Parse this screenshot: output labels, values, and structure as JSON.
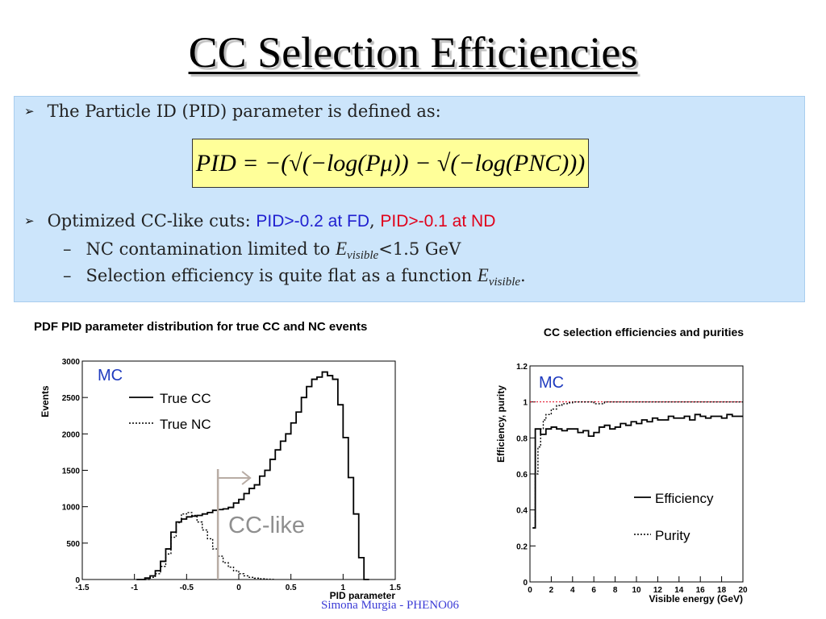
{
  "slide": {
    "title": "CC Selection Efficiencies",
    "bullet1": "The Particle ID (PID) parameter is defined as:",
    "formula": "PID = −(√(−log(Pμ)) − √(−log(PNC)))",
    "bullet2_prefix": "Optimized CC-like cuts: ",
    "bullet2_fd": "PID>-0.2 at FD",
    "bullet2_sep": ", ",
    "bullet2_nd": "PID>-0.1 at ND",
    "sub1_prefix": "NC contamination limited to ",
    "sub1_var": "E",
    "sub1_subscript": "visible",
    "sub1_suffix": "<1.5 GeV",
    "sub2_prefix": "Selection efficiency is quite flat as a function ",
    "sub2_var": "E",
    "sub2_subscript": "visible",
    "sub2_suffix": ".",
    "footer": "Simona Murgia - PHENO06",
    "colors": {
      "fd": "#1f1fd0",
      "nd": "#e0001a",
      "panel": "#cce5fb",
      "formula_box": "#ffff99"
    }
  },
  "chart_data": [
    {
      "type": "line",
      "title": "PDF PID parameter distribution for true CC and NC events",
      "xlabel": "PID parameter",
      "ylabel": "Events",
      "xlim": [
        -1.5,
        1.5
      ],
      "ylim": [
        0,
        3000
      ],
      "x_ticks": [
        "-1.5",
        "-1",
        "-0.5",
        "0",
        "0.5",
        "1",
        "1.5"
      ],
      "y_ticks": [
        "0",
        "500",
        "1000",
        "1500",
        "2000",
        "2500",
        "3000"
      ],
      "annotation_mc": "MC",
      "annotation_cut": "CC-like",
      "cut_value": -0.2,
      "legend": [
        "True CC",
        "True NC"
      ],
      "series": [
        {
          "name": "True CC",
          "style": "solid",
          "x": [
            -0.98,
            -0.9,
            -0.85,
            -0.8,
            -0.75,
            -0.7,
            -0.65,
            -0.6,
            -0.55,
            -0.5,
            -0.45,
            -0.4,
            -0.35,
            -0.3,
            -0.25,
            -0.2,
            -0.15,
            -0.1,
            -0.05,
            0,
            0.05,
            0.1,
            0.15,
            0.2,
            0.25,
            0.3,
            0.35,
            0.4,
            0.45,
            0.5,
            0.55,
            0.6,
            0.65,
            0.7,
            0.75,
            0.8,
            0.85,
            0.9,
            0.95,
            1.0,
            1.05,
            1.1,
            1.15,
            1.2,
            1.25
          ],
          "values": [
            0,
            20,
            50,
            120,
            250,
            420,
            650,
            790,
            830,
            860,
            870,
            880,
            900,
            920,
            950,
            960,
            970,
            990,
            1050,
            1100,
            1180,
            1250,
            1300,
            1420,
            1500,
            1650,
            1780,
            1900,
            2000,
            2150,
            2300,
            2500,
            2650,
            2750,
            2780,
            2850,
            2800,
            2750,
            2400,
            1950,
            1400,
            900,
            300,
            0,
            0
          ]
        },
        {
          "name": "True NC",
          "style": "dotted",
          "x": [
            -0.9,
            -0.85,
            -0.8,
            -0.75,
            -0.7,
            -0.65,
            -0.6,
            -0.55,
            -0.5,
            -0.45,
            -0.4,
            -0.35,
            -0.3,
            -0.25,
            -0.2,
            -0.15,
            -0.1,
            -0.05,
            0,
            0.05,
            0.1,
            0.15,
            0.2,
            0.25,
            0.3,
            0.35
          ],
          "values": [
            0,
            30,
            80,
            180,
            350,
            580,
            780,
            900,
            920,
            880,
            790,
            680,
            560,
            420,
            320,
            230,
            170,
            120,
            80,
            50,
            30,
            18,
            10,
            5,
            2,
            0
          ]
        }
      ]
    },
    {
      "type": "line",
      "title": "CC selection efficiencies and purities",
      "xlabel": "Visible energy (GeV)",
      "ylabel": "Efficiency, purity",
      "xlim": [
        0,
        20
      ],
      "ylim": [
        0,
        1.2
      ],
      "x_ticks": [
        "0",
        "2",
        "4",
        "6",
        "8",
        "10",
        "12",
        "14",
        "16",
        "18",
        "20"
      ],
      "y_ticks": [
        "0",
        "0.2",
        "0.4",
        "0.6",
        "0.8",
        "1",
        "1.2"
      ],
      "reference_line": 1.0,
      "annotation_mc": "MC",
      "legend": [
        "Efficiency",
        "Purity"
      ],
      "series": [
        {
          "name": "Efficiency",
          "style": "solid",
          "x": [
            0.25,
            0.5,
            1,
            1.5,
            2,
            2.5,
            3,
            3.5,
            4,
            4.5,
            5,
            5.5,
            6,
            6.5,
            7,
            7.5,
            8,
            8.5,
            9,
            9.5,
            10,
            10.5,
            11,
            11.5,
            12,
            12.5,
            13,
            13.5,
            14,
            14.5,
            15,
            15.5,
            16,
            16.5,
            17,
            17.5,
            18,
            18.5,
            19,
            19.5,
            20
          ],
          "values": [
            0.3,
            0.85,
            0.82,
            0.85,
            0.86,
            0.85,
            0.84,
            0.85,
            0.85,
            0.83,
            0.84,
            0.81,
            0.83,
            0.86,
            0.87,
            0.85,
            0.86,
            0.88,
            0.87,
            0.89,
            0.88,
            0.9,
            0.89,
            0.91,
            0.9,
            0.9,
            0.92,
            0.91,
            0.91,
            0.92,
            0.9,
            0.93,
            0.92,
            0.91,
            0.92,
            0.92,
            0.91,
            0.93,
            0.92,
            0.92,
            0.92
          ]
        },
        {
          "name": "Purity",
          "style": "dotted",
          "x": [
            0.25,
            0.5,
            0.75,
            1,
            1.25,
            1.5,
            2,
            2.5,
            3,
            3.5,
            4,
            5,
            6,
            7,
            8,
            9,
            10,
            12,
            14,
            16,
            18,
            20
          ],
          "values": [
            0.3,
            0.6,
            0.75,
            0.85,
            0.9,
            0.93,
            0.96,
            0.98,
            0.99,
            0.995,
            1.0,
            1.0,
            0.99,
            1.0,
            1.0,
            1.0,
            1.0,
            1.0,
            1.0,
            1.0,
            1.0,
            1.0
          ]
        }
      ]
    }
  ]
}
